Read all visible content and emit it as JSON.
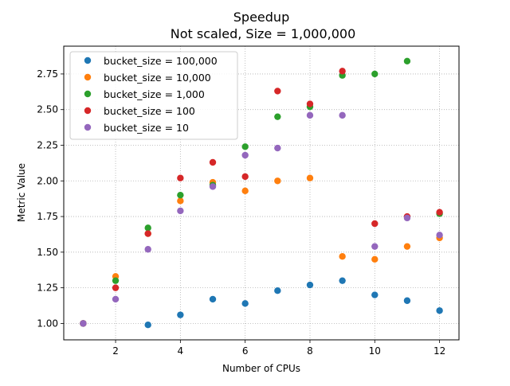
{
  "chart_data": {
    "type": "scatter",
    "title": "Speedup",
    "subtitle": "Not scaled, Size = 1,000,000",
    "xlabel": "Number of CPUs",
    "ylabel": "Metric Value",
    "xlim": [
      0.4,
      12.6
    ],
    "ylim": [
      0.885,
      2.945
    ],
    "xticks": [
      2,
      4,
      6,
      8,
      10,
      12
    ],
    "yticks": [
      1.0,
      1.25,
      1.5,
      1.75,
      2.0,
      2.25,
      2.5,
      2.75
    ],
    "grid": true,
    "legend_position": "top-left",
    "series": [
      {
        "name": "bucket_size = 100,000",
        "color": "#1f77b4",
        "x": [
          1,
          3,
          4,
          5,
          6,
          7,
          8,
          9,
          10,
          11,
          12
        ],
        "y": [
          1.0,
          0.99,
          1.06,
          1.17,
          1.14,
          1.23,
          1.27,
          1.3,
          1.2,
          1.16,
          1.09
        ]
      },
      {
        "name": "bucket_size = 10,000",
        "color": "#ff7f0e",
        "x": [
          1,
          2,
          3,
          4,
          5,
          6,
          7,
          8,
          9,
          10,
          11,
          12
        ],
        "y": [
          1.0,
          1.33,
          1.63,
          1.86,
          1.99,
          1.93,
          2.0,
          2.02,
          1.47,
          1.45,
          1.54,
          1.6
        ]
      },
      {
        "name": "bucket_size = 1,000",
        "color": "#2ca02c",
        "x": [
          1,
          2,
          3,
          4,
          5,
          6,
          7,
          8,
          9,
          10,
          11,
          12
        ],
        "y": [
          1.0,
          1.3,
          1.67,
          1.9,
          1.97,
          2.24,
          2.45,
          2.52,
          2.74,
          2.75,
          2.84,
          1.77
        ]
      },
      {
        "name": "bucket_size = 100",
        "color": "#d62728",
        "x": [
          1,
          2,
          3,
          4,
          5,
          6,
          7,
          8,
          9,
          10,
          11,
          12
        ],
        "y": [
          1.0,
          1.25,
          1.63,
          2.02,
          2.13,
          2.03,
          2.63,
          2.54,
          2.77,
          1.7,
          1.75,
          1.78
        ]
      },
      {
        "name": "bucket_size = 10",
        "color": "#9467bd",
        "x": [
          1,
          2,
          3,
          4,
          5,
          6,
          7,
          8,
          9,
          10,
          11,
          12
        ],
        "y": [
          1.0,
          1.17,
          1.52,
          1.79,
          1.96,
          2.18,
          2.23,
          2.46,
          2.46,
          1.54,
          1.74,
          1.62
        ]
      }
    ]
  }
}
